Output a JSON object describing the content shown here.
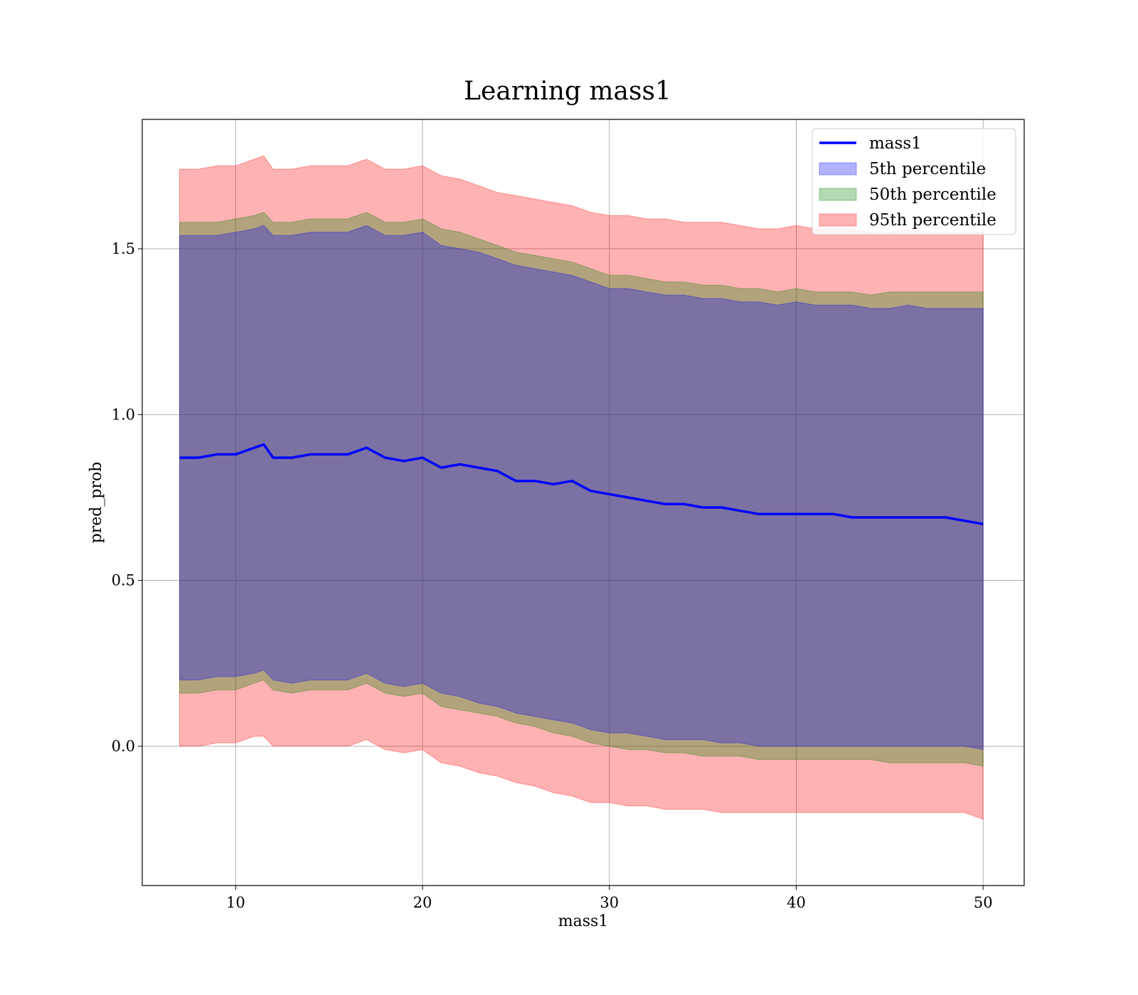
{
  "chart_data": {
    "type": "line",
    "title": "Learning mass1",
    "xlabel": "mass1",
    "ylabel": "pred_prob",
    "xlim": [
      5,
      52.2
    ],
    "ylim": [
      -0.42,
      1.89
    ],
    "xticks": [
      10,
      20,
      30,
      40,
      50
    ],
    "xtick_labels": [
      "10",
      "20",
      "30",
      "40",
      "50"
    ],
    "yticks": [
      0.0,
      0.5,
      1.0,
      1.5
    ],
    "ytick_labels": [
      "0.0",
      "0.5",
      "1.0",
      "1.5"
    ],
    "grid": true,
    "legend_position": "top-right",
    "x": [
      7,
      8,
      9,
      10,
      11,
      11.5,
      12,
      13,
      14,
      15,
      16,
      17,
      18,
      19,
      20,
      21,
      22,
      23,
      24,
      25,
      26,
      27,
      28,
      29,
      30,
      31,
      32,
      33,
      34,
      35,
      36,
      37,
      38,
      39,
      40,
      41,
      42,
      43,
      44,
      45,
      46,
      47,
      48,
      49,
      50
    ],
    "series": [
      {
        "name": "mass1",
        "kind": "line",
        "color": "#0000ff",
        "values": [
          0.87,
          0.87,
          0.88,
          0.88,
          0.9,
          0.91,
          0.87,
          0.87,
          0.88,
          0.88,
          0.88,
          0.9,
          0.87,
          0.86,
          0.87,
          0.84,
          0.85,
          0.84,
          0.83,
          0.8,
          0.8,
          0.79,
          0.8,
          0.77,
          0.76,
          0.75,
          0.74,
          0.73,
          0.73,
          0.72,
          0.72,
          0.71,
          0.7,
          0.7,
          0.7,
          0.7,
          0.7,
          0.69,
          0.69,
          0.69,
          0.69,
          0.69,
          0.69,
          0.68,
          0.67
        ]
      },
      {
        "name": "5th percentile",
        "kind": "band",
        "color": "#0000ff",
        "lower": [
          0.2,
          0.2,
          0.21,
          0.21,
          0.22,
          0.23,
          0.2,
          0.19,
          0.2,
          0.2,
          0.2,
          0.22,
          0.19,
          0.18,
          0.19,
          0.16,
          0.15,
          0.13,
          0.12,
          0.1,
          0.09,
          0.08,
          0.07,
          0.05,
          0.04,
          0.04,
          0.03,
          0.02,
          0.02,
          0.02,
          0.01,
          0.01,
          0.0,
          0.0,
          0.0,
          0.0,
          0.0,
          0.0,
          0.0,
          0.0,
          0.0,
          0.0,
          0.0,
          0.0,
          -0.01
        ],
        "upper": [
          1.54,
          1.54,
          1.54,
          1.55,
          1.56,
          1.57,
          1.54,
          1.54,
          1.55,
          1.55,
          1.55,
          1.57,
          1.54,
          1.54,
          1.55,
          1.51,
          1.5,
          1.49,
          1.47,
          1.45,
          1.44,
          1.43,
          1.42,
          1.4,
          1.38,
          1.38,
          1.37,
          1.36,
          1.36,
          1.35,
          1.35,
          1.34,
          1.34,
          1.33,
          1.34,
          1.33,
          1.33,
          1.33,
          1.32,
          1.32,
          1.33,
          1.32,
          1.32,
          1.32,
          1.32
        ]
      },
      {
        "name": "50th percentile",
        "kind": "band",
        "color": "#008000",
        "lower": [
          0.16,
          0.16,
          0.17,
          0.17,
          0.19,
          0.2,
          0.17,
          0.16,
          0.17,
          0.17,
          0.17,
          0.19,
          0.16,
          0.15,
          0.16,
          0.12,
          0.11,
          0.1,
          0.09,
          0.07,
          0.06,
          0.04,
          0.03,
          0.01,
          0.0,
          -0.01,
          -0.01,
          -0.02,
          -0.02,
          -0.03,
          -0.03,
          -0.03,
          -0.04,
          -0.04,
          -0.04,
          -0.04,
          -0.04,
          -0.04,
          -0.04,
          -0.05,
          -0.05,
          -0.05,
          -0.05,
          -0.05,
          -0.06
        ],
        "upper": [
          1.58,
          1.58,
          1.58,
          1.59,
          1.6,
          1.61,
          1.58,
          1.58,
          1.59,
          1.59,
          1.59,
          1.61,
          1.58,
          1.58,
          1.59,
          1.56,
          1.55,
          1.53,
          1.51,
          1.49,
          1.48,
          1.47,
          1.46,
          1.44,
          1.42,
          1.42,
          1.41,
          1.4,
          1.4,
          1.39,
          1.39,
          1.38,
          1.38,
          1.37,
          1.38,
          1.37,
          1.37,
          1.37,
          1.36,
          1.37,
          1.37,
          1.37,
          1.37,
          1.37,
          1.37
        ]
      },
      {
        "name": "95th percentile",
        "kind": "band",
        "color": "#ff0000",
        "lower": [
          0.0,
          0.0,
          0.01,
          0.01,
          0.03,
          0.03,
          0.0,
          0.0,
          0.0,
          0.0,
          0.0,
          0.02,
          -0.01,
          -0.02,
          -0.01,
          -0.05,
          -0.06,
          -0.08,
          -0.09,
          -0.11,
          -0.12,
          -0.14,
          -0.15,
          -0.17,
          -0.17,
          -0.18,
          -0.18,
          -0.19,
          -0.19,
          -0.19,
          -0.2,
          -0.2,
          -0.2,
          -0.2,
          -0.2,
          -0.2,
          -0.2,
          -0.2,
          -0.2,
          -0.2,
          -0.2,
          -0.2,
          -0.2,
          -0.2,
          -0.22
        ],
        "upper": [
          1.74,
          1.74,
          1.75,
          1.75,
          1.77,
          1.78,
          1.74,
          1.74,
          1.75,
          1.75,
          1.75,
          1.77,
          1.74,
          1.74,
          1.75,
          1.72,
          1.71,
          1.69,
          1.67,
          1.66,
          1.65,
          1.64,
          1.63,
          1.61,
          1.6,
          1.6,
          1.59,
          1.59,
          1.58,
          1.58,
          1.58,
          1.57,
          1.56,
          1.56,
          1.57,
          1.56,
          1.56,
          1.56,
          1.55,
          1.55,
          1.56,
          1.55,
          1.55,
          1.55,
          1.55
        ]
      }
    ]
  }
}
